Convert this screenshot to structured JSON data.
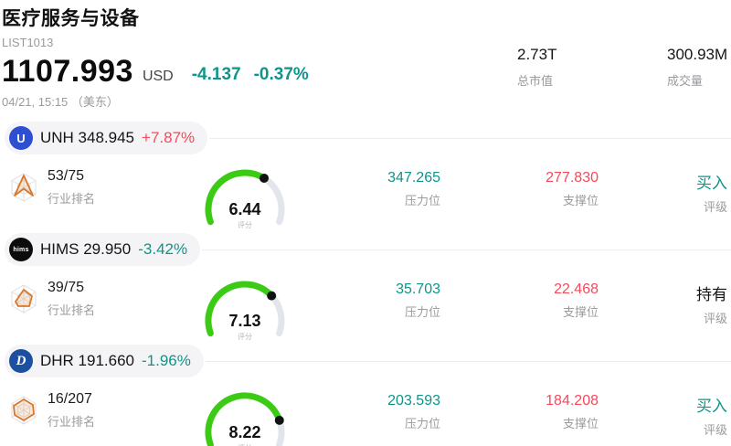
{
  "header": {
    "title": "医疗服务与设备",
    "list_id": "LIST1013",
    "price": "1107.993",
    "currency": "USD",
    "change": "-4.137",
    "change_pct": "-0.37%",
    "timestamp": "04/21, 15:15 （美东）",
    "stats": [
      {
        "value": "2.73T",
        "label": "总市值"
      },
      {
        "value": "300.93M",
        "label": "成交量"
      }
    ]
  },
  "labels": {
    "industry_rank": "行业排名",
    "score": "评分",
    "resistance": "压力位",
    "support": "支撑位",
    "rating": "评级"
  },
  "colors": {
    "up": "#f6495b",
    "down": "#0f9488",
    "neutral_text": "#141414",
    "gauge_fill": "#3bcb14",
    "gauge_track": "#e3e5ec",
    "gauge_dot": "#111111",
    "pill_bg": "#f4f4f6",
    "divider": "#ececef",
    "muted": "#9b9b9e",
    "radar_stroke": "#d9772a",
    "radar_web": "#dedee2"
  },
  "stocks": [
    {
      "symbol": "UNH",
      "price": "348.945",
      "change_pct": "+7.87%",
      "direction": "up",
      "logo": {
        "text": "U",
        "bg": "#2e4fd1",
        "style": "plain"
      },
      "radar": "arrow",
      "rank": "53/75",
      "score": 6.44,
      "score_text": "6.44",
      "resistance": "347.265",
      "support": "277.830",
      "rating": "买入",
      "rating_style": "buy"
    },
    {
      "symbol": "HIMS",
      "price": "29.950",
      "change_pct": "-3.42%",
      "direction": "down",
      "logo": {
        "text": "hims",
        "bg": "#0c0c0c",
        "style": "small-text"
      },
      "radar": "pentagon",
      "rank": "39/75",
      "score": 7.13,
      "score_text": "7.13",
      "resistance": "35.703",
      "support": "22.468",
      "rating": "持有",
      "rating_style": "hold"
    },
    {
      "symbol": "DHR",
      "price": "191.660",
      "change_pct": "-1.96%",
      "direction": "down",
      "logo": {
        "text": "D",
        "bg": "#1b4fa0",
        "style": "italic"
      },
      "radar": "hexagon",
      "rank": "16/207",
      "score": 8.22,
      "score_text": "8.22",
      "resistance": "203.593",
      "support": "184.208",
      "rating": "买入",
      "rating_style": "buy"
    }
  ]
}
